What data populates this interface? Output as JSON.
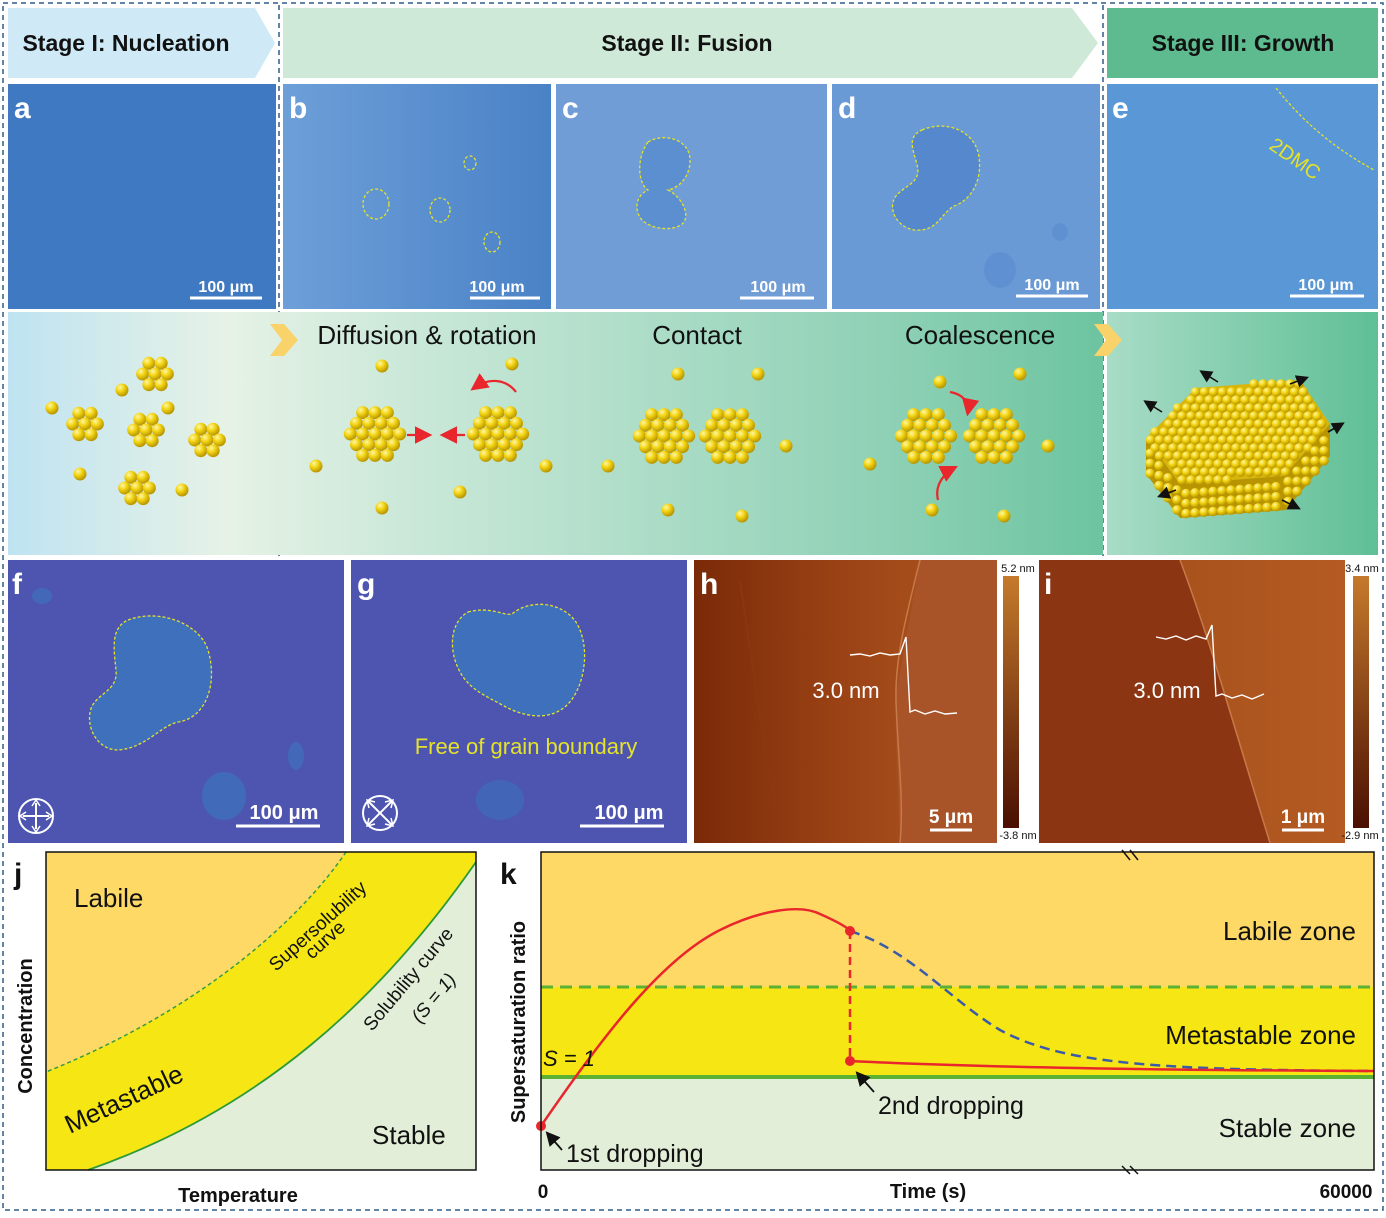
{
  "stages": {
    "stage1": "Stage I: Nucleation",
    "stage2": "Stage II: Fusion",
    "stage3": "Stage III: Growth"
  },
  "panels": {
    "a": "a",
    "b": "b",
    "c": "c",
    "d": "d",
    "e": "e",
    "f": "f",
    "g": "g",
    "h": "h",
    "i": "i",
    "j": "j",
    "k": "k"
  },
  "scale_bars": {
    "s100": "100 μm",
    "s5": "5 μm",
    "s1": "1 μm"
  },
  "annotations": {
    "e_label": "2DMC",
    "g_label": "Free of grain boundary",
    "h_height": "3.0 nm",
    "i_height": "3.0 nm"
  },
  "colorbars": {
    "h_max": "5.2 nm",
    "h_min": "-3.8 nm",
    "i_max": "3.4 nm",
    "i_min": "-2.9 nm"
  },
  "process_labels": {
    "diffusion": "Diffusion & rotation",
    "contact": "Contact",
    "coalescence": "Coalescence"
  },
  "panel_j": {
    "ylabel": "Concentration",
    "xlabel": "Temperature",
    "labile": "Labile",
    "metastable": "Metastable",
    "stable": "Stable",
    "supersol1": "Supersolubility",
    "supersol2": "curve",
    "sol1": "Solubility curve",
    "sol2": "(S = 1)"
  },
  "panel_k": {
    "ylabel": "Supersaturation ratio",
    "xlabel": "Time (s)",
    "x_start": "0",
    "x_end": "60000",
    "labile_zone": "Labile zone",
    "metastable_zone": "Metastable zone",
    "stable_zone": "Stable zone",
    "s_eq": "S = 1",
    "drop1": "1st dropping",
    "drop2": "2nd dropping"
  },
  "colors": {
    "labile": "#ffd966",
    "metastable": "#f5e614",
    "stable": "#e2eed8",
    "curve": "#e8262b",
    "dashed_blue": "#3b5ba8",
    "solubility": "#5bb132",
    "nucleation_header": "#cfeaf6",
    "fusion_header": "#cfe9d8",
    "growth_header": "#5dbb8f",
    "particle": "#f5d90f"
  }
}
